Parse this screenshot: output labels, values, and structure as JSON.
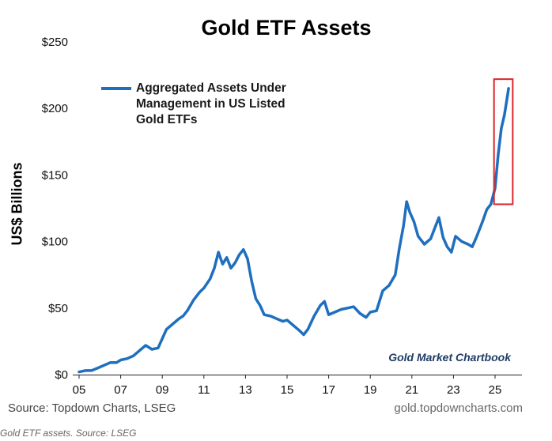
{
  "chart_data": {
    "type": "line",
    "title": "Gold ETF Assets",
    "ylabel": "US$ Billions",
    "xlabel": "",
    "ylim": [
      0,
      250
    ],
    "xlim": [
      2005,
      2025.8
    ],
    "yticks": [
      {
        "value": 0,
        "label": "$0"
      },
      {
        "value": 50,
        "label": "$50"
      },
      {
        "value": 100,
        "label": "$100"
      },
      {
        "value": 150,
        "label": "$150"
      },
      {
        "value": 200,
        "label": "$200"
      },
      {
        "value": 250,
        "label": "$250"
      }
    ],
    "xticks": [
      {
        "value": 2005,
        "label": "05"
      },
      {
        "value": 2007,
        "label": "07"
      },
      {
        "value": 2009,
        "label": "09"
      },
      {
        "value": 2011,
        "label": "11"
      },
      {
        "value": 2013,
        "label": "13"
      },
      {
        "value": 2015,
        "label": "15"
      },
      {
        "value": 2017,
        "label": "17"
      },
      {
        "value": 2019,
        "label": "19"
      },
      {
        "value": 2021,
        "label": "21"
      },
      {
        "value": 2023,
        "label": "23"
      },
      {
        "value": 2025,
        "label": "25"
      }
    ],
    "legend": "top-left",
    "grid": false,
    "series": [
      {
        "name": "Aggregated Assets Under Management in US Listed Gold ETFs",
        "color": "#1f6fbe",
        "points": [
          [
            2005.0,
            2
          ],
          [
            2005.3,
            3
          ],
          [
            2005.6,
            3
          ],
          [
            2005.9,
            5
          ],
          [
            2006.2,
            7
          ],
          [
            2006.5,
            9
          ],
          [
            2006.8,
            9
          ],
          [
            2007.0,
            11
          ],
          [
            2007.3,
            12
          ],
          [
            2007.6,
            14
          ],
          [
            2007.9,
            18
          ],
          [
            2008.2,
            22
          ],
          [
            2008.5,
            19
          ],
          [
            2008.8,
            20
          ],
          [
            2009.0,
            27
          ],
          [
            2009.2,
            34
          ],
          [
            2009.5,
            38
          ],
          [
            2009.8,
            42
          ],
          [
            2010.0,
            44
          ],
          [
            2010.2,
            48
          ],
          [
            2010.5,
            56
          ],
          [
            2010.8,
            62
          ],
          [
            2011.0,
            65
          ],
          [
            2011.3,
            72
          ],
          [
            2011.5,
            80
          ],
          [
            2011.7,
            92
          ],
          [
            2011.9,
            83
          ],
          [
            2012.1,
            88
          ],
          [
            2012.3,
            80
          ],
          [
            2012.5,
            84
          ],
          [
            2012.7,
            90
          ],
          [
            2012.9,
            94
          ],
          [
            2013.1,
            87
          ],
          [
            2013.3,
            70
          ],
          [
            2013.5,
            57
          ],
          [
            2013.7,
            52
          ],
          [
            2013.9,
            45
          ],
          [
            2014.2,
            44
          ],
          [
            2014.5,
            42
          ],
          [
            2014.8,
            40
          ],
          [
            2015.0,
            41
          ],
          [
            2015.3,
            37
          ],
          [
            2015.6,
            33
          ],
          [
            2015.8,
            30
          ],
          [
            2016.0,
            34
          ],
          [
            2016.3,
            44
          ],
          [
            2016.6,
            52
          ],
          [
            2016.8,
            55
          ],
          [
            2017.0,
            45
          ],
          [
            2017.3,
            47
          ],
          [
            2017.6,
            49
          ],
          [
            2017.9,
            50
          ],
          [
            2018.2,
            51
          ],
          [
            2018.5,
            46
          ],
          [
            2018.8,
            43
          ],
          [
            2019.0,
            47
          ],
          [
            2019.3,
            48
          ],
          [
            2019.6,
            63
          ],
          [
            2019.9,
            67
          ],
          [
            2020.2,
            75
          ],
          [
            2020.4,
            95
          ],
          [
            2020.6,
            112
          ],
          [
            2020.75,
            130
          ],
          [
            2020.9,
            122
          ],
          [
            2021.1,
            115
          ],
          [
            2021.3,
            104
          ],
          [
            2021.6,
            98
          ],
          [
            2021.9,
            102
          ],
          [
            2022.1,
            110
          ],
          [
            2022.3,
            118
          ],
          [
            2022.5,
            103
          ],
          [
            2022.7,
            96
          ],
          [
            2022.9,
            92
          ],
          [
            2023.1,
            104
          ],
          [
            2023.4,
            100
          ],
          [
            2023.7,
            98
          ],
          [
            2023.9,
            96
          ],
          [
            2024.1,
            103
          ],
          [
            2024.4,
            115
          ],
          [
            2024.6,
            124
          ],
          [
            2024.8,
            128
          ],
          [
            2025.0,
            140
          ],
          [
            2025.15,
            165
          ],
          [
            2025.3,
            185
          ],
          [
            2025.45,
            195
          ],
          [
            2025.55,
            205
          ],
          [
            2025.65,
            215
          ]
        ]
      }
    ],
    "highlight_box": {
      "x_start": 2024.95,
      "x_end": 2025.85,
      "y_start": 128,
      "y_end": 222,
      "color": "#d9262b"
    }
  },
  "legend": {
    "label": "Aggregated Assets Under Management in US Listed Gold ETFs"
  },
  "watermark": "Gold Market Chartbook",
  "source_left": "Source: Topdown Charts, LSEG",
  "source_right": "gold.topdowncharts.com",
  "caption": "Gold ETF assets. Source: LSEG"
}
